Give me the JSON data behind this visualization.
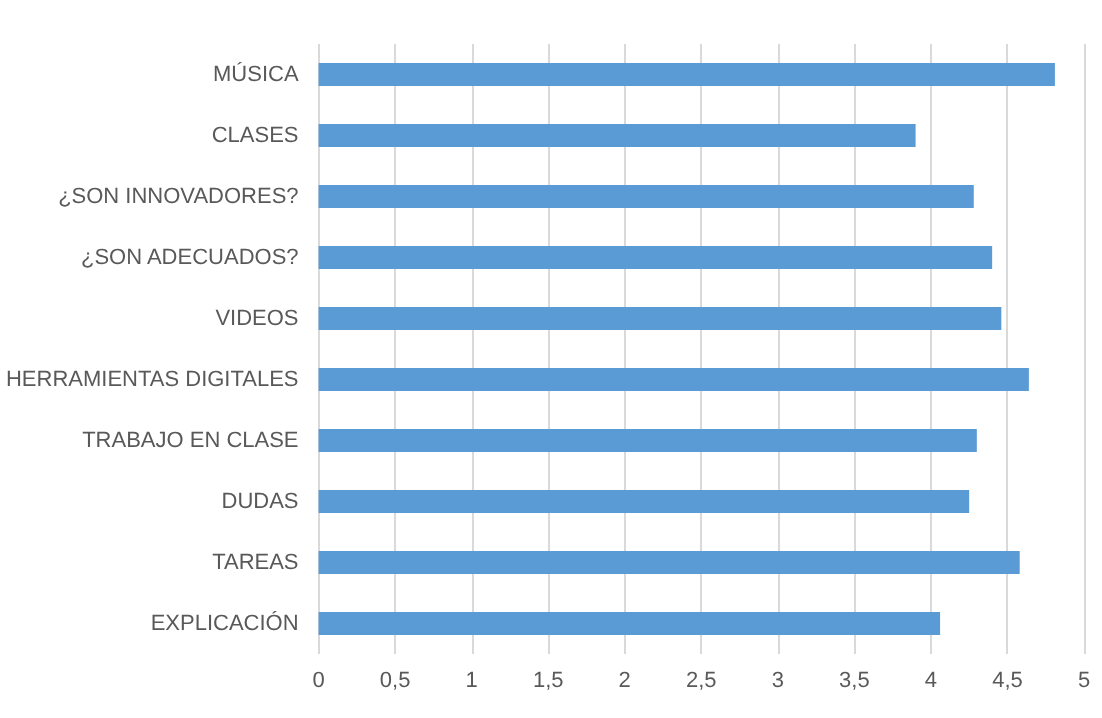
{
  "chart_data": {
    "type": "bar",
    "orientation": "horizontal",
    "categories": [
      "MÚSICA",
      "CLASES",
      "¿SON INNOVADORES?",
      "¿SON ADECUADOS?",
      "VIDEOS",
      "HERRAMIENTAS DIGITALES",
      "TRABAJO EN CLASE",
      "DUDAS",
      "TAREAS",
      "EXPLICACIÓN"
    ],
    "values": [
      4.81,
      3.9,
      4.28,
      4.4,
      4.46,
      4.64,
      4.3,
      4.25,
      4.58,
      4.06
    ],
    "color": "#5b9bd5",
    "xlim": [
      0,
      5
    ],
    "xticks": [
      0,
      {
        "value": 0.5,
        "label": "0,5"
      },
      1,
      {
        "value": 1.5,
        "label": "1,5"
      },
      2,
      {
        "value": 2.5,
        "label": "2,5"
      },
      3,
      {
        "value": 3.5,
        "label": "3,5"
      },
      4,
      {
        "value": 4.5,
        "label": "4,5"
      },
      5
    ],
    "grid": "x"
  }
}
